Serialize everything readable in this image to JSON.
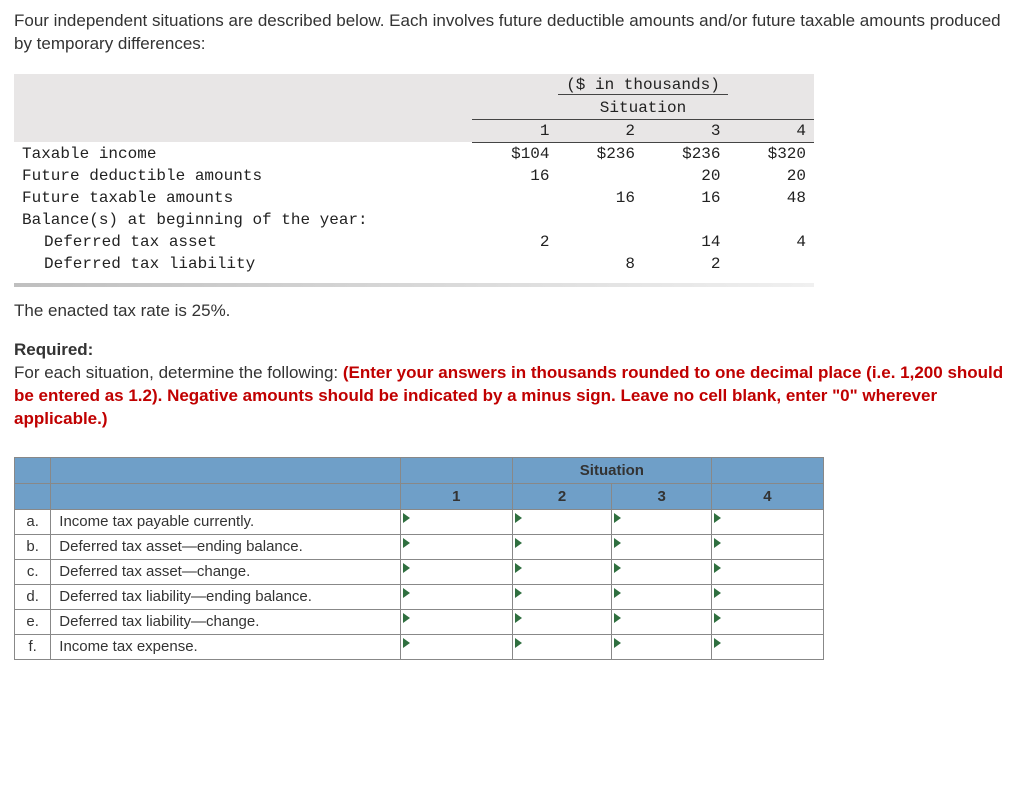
{
  "intro": "Four independent situations are described below. Each involves future deductible amounts and/or future taxable amounts produced by temporary differences:",
  "data_table": {
    "unit_header": "($ in thousands)",
    "group_header": "Situation",
    "col_headers": [
      "1",
      "2",
      "3",
      "4"
    ],
    "rows": [
      {
        "label": "Taxable income",
        "indent": false,
        "cells": [
          "$104",
          "$236",
          "$236",
          "$320"
        ]
      },
      {
        "label": "Future deductible amounts",
        "indent": false,
        "cells": [
          "16",
          "",
          "20",
          "20"
        ]
      },
      {
        "label": "Future taxable amounts",
        "indent": false,
        "cells": [
          "",
          "16",
          "16",
          "48"
        ]
      },
      {
        "label": "Balance(s) at beginning of the year:",
        "indent": false,
        "cells": [
          "",
          "",
          "",
          ""
        ]
      },
      {
        "label": "Deferred tax asset",
        "indent": true,
        "cells": [
          "2",
          "",
          "14",
          "4"
        ]
      },
      {
        "label": "Deferred tax liability",
        "indent": true,
        "cells": [
          "",
          "8",
          "2",
          ""
        ]
      }
    ]
  },
  "tax_rate_text": "The enacted tax rate is 25%.",
  "required_label": "Required:",
  "required_plain": "For each situation, determine the following: ",
  "required_red": "(Enter your answers in thousands rounded to one decimal place (i.e. 1,200 should be entered as 1.2). Negative amounts should be indicated by a minus sign. Leave no cell blank, enter \"0\" wherever applicable.)",
  "answer_table": {
    "group_header": "Situation",
    "col_headers": [
      "1",
      "2",
      "3",
      "4"
    ],
    "rows": [
      {
        "letter": "a.",
        "label": "Income tax payable currently."
      },
      {
        "letter": "b.",
        "label": "Deferred tax asset—ending balance."
      },
      {
        "letter": "c.",
        "label": "Deferred tax asset—change."
      },
      {
        "letter": "d.",
        "label": "Deferred tax liability—ending balance."
      },
      {
        "letter": "e.",
        "label": "Deferred tax liability—change."
      },
      {
        "letter": "f.",
        "label": "Income tax expense."
      }
    ]
  },
  "colors": {
    "header_bg": "#6f9fc8",
    "thead_bg": "#e8e6e6",
    "red_text": "#c00000",
    "marker": "#2f6f3f"
  }
}
